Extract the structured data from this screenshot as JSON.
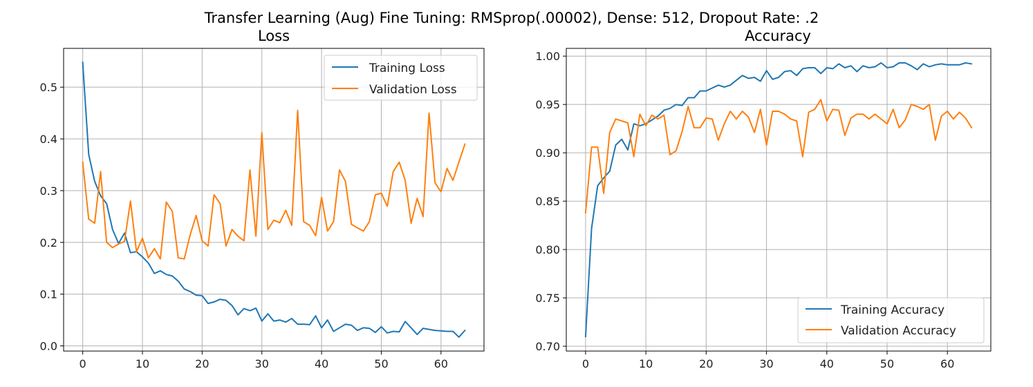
{
  "suptitle": "Transfer Learning (Aug) Fine Tuning: RMSprop(.00002), Dense: 512, Dropout Rate: .2",
  "colors": {
    "training": "#1f77b4",
    "validation": "#ff7f0e",
    "grid": "#b0b0b0"
  },
  "chart_data": [
    {
      "type": "line",
      "title": "Loss",
      "xlabel": "",
      "ylabel": "",
      "xlim": [
        -3.2,
        67.2
      ],
      "ylim": [
        -0.01,
        0.575
      ],
      "xticks": [
        0,
        10,
        20,
        30,
        40,
        50,
        60
      ],
      "yticks": [
        0.0,
        0.1,
        0.2,
        0.3,
        0.4,
        0.5
      ],
      "ytick_labels": [
        "0.0",
        "0.1",
        "0.2",
        "0.3",
        "0.4",
        "0.5"
      ],
      "grid": true,
      "legend_position": "top-right",
      "series": [
        {
          "name": "Training Loss",
          "values": [
            0.548,
            0.37,
            0.318,
            0.29,
            0.275,
            0.225,
            0.198,
            0.218,
            0.18,
            0.182,
            0.172,
            0.16,
            0.14,
            0.145,
            0.138,
            0.135,
            0.125,
            0.11,
            0.105,
            0.098,
            0.097,
            0.082,
            0.085,
            0.09,
            0.088,
            0.078,
            0.06,
            0.072,
            0.068,
            0.073,
            0.048,
            0.062,
            0.048,
            0.05,
            0.046,
            0.053,
            0.042,
            0.042,
            0.041,
            0.058,
            0.035,
            0.05,
            0.028,
            0.035,
            0.042,
            0.04,
            0.03,
            0.035,
            0.034,
            0.026,
            0.037,
            0.025,
            0.028,
            0.027,
            0.047,
            0.035,
            0.022,
            0.034,
            0.032,
            0.03,
            0.029,
            0.028,
            0.028,
            0.017,
            0.03
          ]
        },
        {
          "name": "Validation Loss",
          "values": [
            0.355,
            0.245,
            0.237,
            0.337,
            0.2,
            0.19,
            0.197,
            0.202,
            0.28,
            0.182,
            0.208,
            0.17,
            0.188,
            0.168,
            0.278,
            0.26,
            0.17,
            0.168,
            0.215,
            0.252,
            0.203,
            0.193,
            0.292,
            0.275,
            0.193,
            0.225,
            0.212,
            0.203,
            0.34,
            0.212,
            0.412,
            0.225,
            0.243,
            0.238,
            0.262,
            0.233,
            0.455,
            0.24,
            0.233,
            0.213,
            0.287,
            0.222,
            0.24,
            0.34,
            0.318,
            0.235,
            0.228,
            0.222,
            0.24,
            0.292,
            0.295,
            0.27,
            0.337,
            0.355,
            0.32,
            0.237,
            0.285,
            0.25,
            0.45,
            0.315,
            0.298,
            0.343,
            0.32,
            0.355,
            0.39
          ]
        }
      ]
    },
    {
      "type": "line",
      "title": "Accuracy",
      "xlabel": "",
      "ylabel": "",
      "xlim": [
        -3.2,
        67.2
      ],
      "ylim": [
        0.695,
        1.008
      ],
      "xticks": [
        0,
        10,
        20,
        30,
        40,
        50,
        60
      ],
      "yticks": [
        0.7,
        0.75,
        0.8,
        0.85,
        0.9,
        0.95,
        1.0
      ],
      "ytick_labels": [
        "0.70",
        "0.75",
        "0.80",
        "0.85",
        "0.90",
        "0.95",
        "1.00"
      ],
      "grid": true,
      "legend_position": "bottom-right",
      "series": [
        {
          "name": "Training Accuracy",
          "values": [
            0.71,
            0.822,
            0.866,
            0.874,
            0.881,
            0.908,
            0.914,
            0.903,
            0.93,
            0.928,
            0.93,
            0.934,
            0.938,
            0.944,
            0.946,
            0.95,
            0.949,
            0.957,
            0.957,
            0.964,
            0.964,
            0.967,
            0.97,
            0.968,
            0.97,
            0.975,
            0.98,
            0.977,
            0.978,
            0.974,
            0.985,
            0.976,
            0.978,
            0.984,
            0.985,
            0.98,
            0.987,
            0.988,
            0.988,
            0.982,
            0.988,
            0.987,
            0.992,
            0.988,
            0.99,
            0.984,
            0.99,
            0.988,
            0.989,
            0.993,
            0.988,
            0.989,
            0.993,
            0.993,
            0.99,
            0.986,
            0.992,
            0.989,
            0.991,
            0.992,
            0.991,
            0.991,
            0.991,
            0.993,
            0.992
          ]
        },
        {
          "name": "Validation Accuracy",
          "values": [
            0.838,
            0.906,
            0.906,
            0.858,
            0.921,
            0.935,
            0.933,
            0.931,
            0.896,
            0.94,
            0.928,
            0.939,
            0.935,
            0.939,
            0.898,
            0.902,
            0.922,
            0.948,
            0.926,
            0.926,
            0.936,
            0.935,
            0.913,
            0.93,
            0.943,
            0.935,
            0.943,
            0.937,
            0.921,
            0.945,
            0.908,
            0.943,
            0.943,
            0.94,
            0.935,
            0.933,
            0.896,
            0.942,
            0.945,
            0.955,
            0.933,
            0.945,
            0.944,
            0.918,
            0.936,
            0.94,
            0.94,
            0.935,
            0.94,
            0.935,
            0.93,
            0.945,
            0.926,
            0.934,
            0.95,
            0.948,
            0.945,
            0.95,
            0.913,
            0.938,
            0.943,
            0.935,
            0.942,
            0.936,
            0.926
          ]
        }
      ]
    }
  ]
}
